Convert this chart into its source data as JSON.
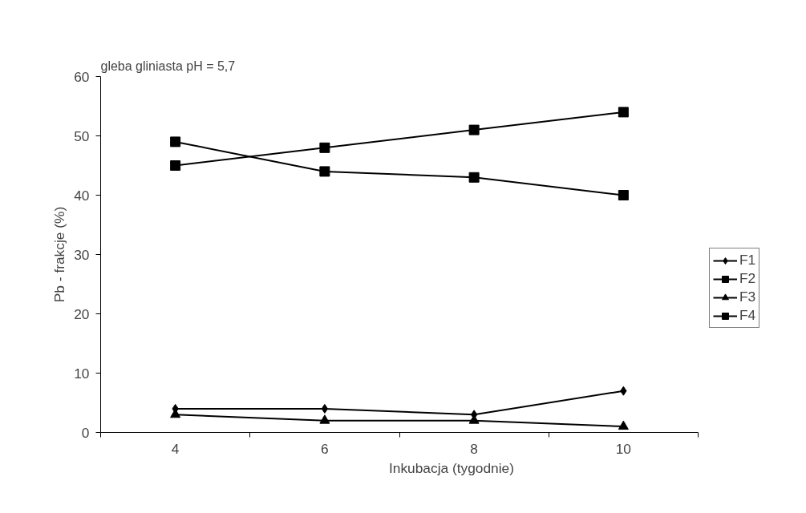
{
  "chart_data": {
    "type": "line",
    "title": "gleba gliniasta  pH = 5,7",
    "xlabel": "Inkubacja (tygodnie)",
    "ylabel": "Pb - frakcje (%)",
    "categories": [
      "4",
      "6",
      "8",
      "10"
    ],
    "ylim": [
      0,
      60
    ],
    "yticks": [
      0,
      10,
      20,
      30,
      40,
      50,
      60
    ],
    "grid": false,
    "legend": "right",
    "line_style": "solid",
    "series": [
      {
        "name": "F1",
        "color": "#000000",
        "marker": "diamond",
        "values": [
          4,
          4,
          3,
          7
        ]
      },
      {
        "name": "F2",
        "color": "#000000",
        "marker": "square",
        "values": [
          49,
          44,
          43,
          40
        ]
      },
      {
        "name": "F3",
        "color": "#000000",
        "marker": "triangle",
        "values": [
          3,
          2,
          2,
          1
        ]
      },
      {
        "name": "F4",
        "color": "#000000",
        "marker": "square",
        "values": [
          45,
          48,
          51,
          54
        ]
      }
    ]
  }
}
